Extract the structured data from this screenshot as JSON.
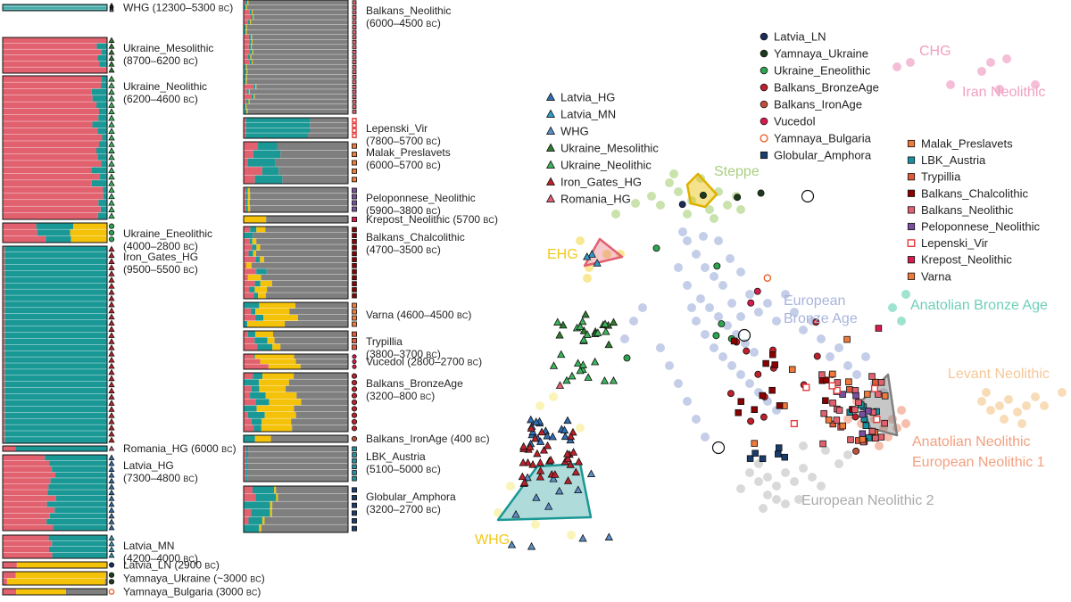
{
  "chart_data": [
    {
      "type": "bar",
      "subtype": "stacked-admixture",
      "title": "",
      "components": [
        {
          "key": "c1",
          "color": "#e2616f"
        },
        {
          "key": "c2",
          "color": "#1a9896"
        },
        {
          "key": "c3",
          "color": "#f5c20a"
        },
        {
          "key": "c4",
          "color": "#7f7f7f"
        }
      ],
      "groups": [
        {
          "col": 0,
          "name": "WHG",
          "dates": "12300–5300",
          "n": 5,
          "symbol": "triangle",
          "color": "#5a8fc8",
          "profile": [
            0,
            1,
            0,
            0
          ]
        },
        {
          "col": 0,
          "name": "Ukraine_Mesolithic",
          "dates": "8700–6200",
          "n": 6,
          "symbol": "triangle",
          "color": "#2f7d2f",
          "profile": [
            0.97,
            0.03,
            0,
            0
          ]
        },
        {
          "col": 0,
          "name": "Ukraine_Neolithic",
          "dates": "6200–4600",
          "n": 22,
          "symbol": "triangle",
          "color": "#3cb55a",
          "profile": [
            0.9,
            0.1,
            0,
            0
          ]
        },
        {
          "col": 0,
          "name": "Ukraine_Eneolithic",
          "dates": "4000–2800",
          "n": 3,
          "symbol": "circle",
          "color": "#2ea44f",
          "profile": [
            0.35,
            0.3,
            0.35,
            0
          ]
        },
        {
          "col": 0,
          "name": "Iron_Gates_HG",
          "dates": "9500–5500",
          "n": 32,
          "symbol": "triangle",
          "color": "#c0202a",
          "profile": [
            0.02,
            0.98,
            0,
            0
          ]
        },
        {
          "col": 0,
          "name": "Romania_HG",
          "dates": "6000",
          "n": 1,
          "symbol": "triangle",
          "color": "#e2616f",
          "profile": [
            0.15,
            0.85,
            0,
            0
          ]
        },
        {
          "col": 0,
          "name": "Latvia_HG",
          "dates": "7300–4800",
          "n": 13,
          "symbol": "triangle",
          "color": "#2f6eb5",
          "profile": [
            0.45,
            0.55,
            0,
            0
          ]
        },
        {
          "col": 0,
          "name": "Latvia_MN",
          "dates": "4200–4000",
          "n": 4,
          "symbol": "triangle",
          "color": "#2f9bc8",
          "profile": [
            0.45,
            0.55,
            0,
            0
          ]
        },
        {
          "col": 0,
          "name": "Latvia_LN",
          "dates": "2900",
          "n": 1,
          "symbol": "circle",
          "color": "#1b2d5a",
          "profile": [
            0.1,
            0,
            0.9,
            0
          ]
        },
        {
          "col": 0,
          "name": "Yamnaya_Ukraine",
          "dates": "~3000",
          "n": 2,
          "symbol": "circle",
          "color": "#1c3b1c",
          "profile": [
            0.05,
            0,
            0.9,
            0.05
          ]
        },
        {
          "col": 0,
          "name": "Yamnaya_Bulgaria",
          "dates": "3000",
          "n": 1,
          "symbol": "circle-open",
          "color": "#e8632a",
          "profile": [
            0.08,
            0,
            0.55,
            0.37
          ]
        },
        {
          "col": 1,
          "name": "Balkans_Neolithic",
          "dates": "6000–4500",
          "n": 23,
          "symbol": "square",
          "color": "#e2616f",
          "profile": [
            0.03,
            0.02,
            0.01,
            0.94
          ]
        },
        {
          "col": 1,
          "name": "Lepenski_Vir",
          "dates": "7800–5700",
          "n": 4,
          "symbol": "square-open",
          "color": "#e63b3b",
          "profile": [
            0.02,
            0.6,
            0,
            0.38
          ]
        },
        {
          "col": 1,
          "name": "Malak_Preslavets",
          "dates": "6000–5700",
          "n": 5,
          "symbol": "square",
          "color": "#f07a3a",
          "profile": [
            0.1,
            0.2,
            0,
            0.7
          ]
        },
        {
          "col": 1,
          "name": "Peloponnese_Neolithic",
          "dates": "5900–3800",
          "n": 4,
          "symbol": "square",
          "color": "#7b4fa0",
          "profile": [
            0.02,
            0.02,
            0.02,
            0.94
          ]
        },
        {
          "col": 1,
          "name": "Krepost_Neolithic",
          "dates": "5700",
          "n": 1,
          "symbol": "square",
          "color": "#d81b4d",
          "profile": [
            0,
            0,
            0.22,
            0.78
          ]
        },
        {
          "col": 1,
          "name": "Balkans_Chalcolithic",
          "dates": "4700–3500",
          "n": 12,
          "symbol": "square",
          "color": "#8b0000",
          "profile": [
            0.06,
            0.03,
            0.06,
            0.85
          ]
        },
        {
          "col": 1,
          "name": "Varna",
          "dates": "4600–4500",
          "n": 4,
          "symbol": "square",
          "color": "#f07a3a",
          "profile": [
            0.05,
            0.08,
            0.3,
            0.57
          ]
        },
        {
          "col": 1,
          "name": "Trypillia",
          "dates": "3800–3700",
          "n": 3,
          "symbol": "square",
          "color": "#e05a3a",
          "profile": [
            0.08,
            0.1,
            0.12,
            0.7
          ]
        },
        {
          "col": 1,
          "name": "Vucedol",
          "dates": "2800–2700",
          "n": 3,
          "symbol": "circle",
          "color": "#d81b4d",
          "profile": [
            0.15,
            0.05,
            0.35,
            0.45
          ]
        },
        {
          "col": 1,
          "name": "Balkans_BronzeAge",
          "dates": "3200–800",
          "n": 9,
          "symbol": "circle",
          "color": "#c0202a",
          "profile": [
            0.05,
            0.1,
            0.3,
            0.55
          ]
        },
        {
          "col": 1,
          "name": "Balkans_IronAge",
          "dates": "400",
          "n": 1,
          "symbol": "circle",
          "color": "#c0503a",
          "profile": [
            0.05,
            0.05,
            0.15,
            0.75
          ]
        },
        {
          "col": 1,
          "name": "LBK_Austria",
          "dates": "5100–5000",
          "n": 6,
          "symbol": "square",
          "color": "#1a8fa0",
          "profile": [
            0.02,
            0.02,
            0,
            0.96
          ]
        },
        {
          "col": 1,
          "name": "Globular_Amphora",
          "dates": "3200–2700",
          "n": 6,
          "symbol": "square",
          "color": "#1b3d6e",
          "profile": [
            0.05,
            0.2,
            0.02,
            0.73
          ]
        }
      ]
    },
    {
      "type": "scatter",
      "subtype": "PCA",
      "title": "",
      "xlabel": "",
      "ylabel": "",
      "legend_left": [
        "Latvia_HG",
        "Latvia_MN",
        "WHG",
        "Ukraine_Mesolithic",
        "Ukraine_Neolithic",
        "Iron_Gates_HG",
        "Romania_HG"
      ],
      "legend_top": [
        "Latvia_LN",
        "Yamnaya_Ukraine",
        "Ukraine_Eneolithic",
        "Balkans_BronzeAge",
        "Balkans_IronAge",
        "Vucedol",
        "Yamnaya_Bulgaria",
        "Globular_Amphora"
      ],
      "legend_right": [
        "Malak_Preslavets",
        "LBK_Austria",
        "Trypillia",
        "Balkans_Chalcolithic",
        "Balkans_Neolithic",
        "Peloponnese_Neolithic",
        "Lepenski_Vir",
        "Krepost_Neolithic",
        "Varna"
      ],
      "clusters": [
        {
          "name": "CHG",
          "color": "#f0a8c8",
          "points": [
            [
              1005,
              75
            ],
            [
              1020,
              70
            ],
            [
              1110,
              70
            ],
            [
              1128,
              66
            ],
            [
              1100,
              80
            ]
          ]
        },
        {
          "name": "Iran Neolithic",
          "color": "#f0a8c8",
          "points": [
            [
              1065,
              95
            ],
            [
              1120,
              100
            ],
            [
              1160,
              95
            ]
          ]
        },
        {
          "name": "Steppe",
          "color": "#b8d890",
          "points": [
            [
              750,
              205
            ],
            [
              760,
              215
            ],
            [
              775,
              225
            ],
            [
              785,
              200
            ],
            [
              795,
              235
            ],
            [
              805,
              215
            ],
            [
              815,
              230
            ],
            [
              825,
              220
            ],
            [
              730,
              220
            ],
            [
              740,
              230
            ],
            [
              770,
              240
            ],
            [
              800,
              245
            ],
            [
              690,
              240
            ],
            [
              712,
              228
            ],
            [
              830,
              235
            ],
            [
              755,
              195
            ]
          ]
        },
        {
          "name": "EHG",
          "color": "#f5e070",
          "points": [
            [
              650,
              270
            ],
            [
              660,
              300
            ],
            [
              680,
              285
            ],
            [
              695,
              285
            ],
            [
              658,
              312
            ]
          ]
        },
        {
          "name": "European Bronze Age",
          "color": "#b0bde0",
          "points": [
            [
              770,
              270
            ],
            [
              780,
              285
            ],
            [
              790,
              300
            ],
            [
              800,
              310
            ],
            [
              810,
              320
            ],
            [
              770,
              320
            ],
            [
              785,
              335
            ],
            [
              795,
              345
            ],
            [
              805,
              355
            ],
            [
              815,
              365
            ],
            [
              825,
              375
            ],
            [
              835,
              385
            ],
            [
              845,
              395
            ],
            [
              780,
              360
            ],
            [
              790,
              375
            ],
            [
              760,
              300
            ],
            [
              775,
              345
            ],
            [
              820,
              340
            ],
            [
              830,
              355
            ],
            [
              840,
              330
            ],
            [
              850,
              350
            ],
            [
              860,
              340
            ],
            [
              870,
              360
            ],
            [
              880,
              330
            ],
            [
              890,
              350
            ],
            [
              900,
              370
            ],
            [
              910,
              360
            ],
            [
              920,
              380
            ],
            [
              930,
              400
            ],
            [
              940,
              390
            ],
            [
              950,
              410
            ],
            [
              960,
              420
            ],
            [
              970,
              400
            ],
            [
              980,
              430
            ],
            [
              990,
              440
            ],
            [
              800,
              390
            ],
            [
              810,
              400
            ],
            [
              820,
              410
            ],
            [
              830,
              420
            ],
            [
              840,
              430
            ],
            [
              850,
              440
            ],
            [
              860,
              450
            ],
            [
              870,
              460
            ],
            [
              740,
              390
            ],
            [
              750,
              410
            ],
            [
              760,
              430
            ],
            [
              770,
              450
            ],
            [
              780,
              470
            ],
            [
              790,
              490
            ],
            [
              700,
              380
            ],
            [
              710,
              360
            ],
            [
              720,
              345
            ],
            [
              765,
              260
            ],
            [
              788,
              265
            ],
            [
              805,
              270
            ],
            [
              818,
              290
            ],
            [
              830,
              305
            ]
          ]
        },
        {
          "name": "Anatolian Bronze Age",
          "color": "#7ed8c0",
          "points": [
            [
              1000,
              345
            ],
            [
              1015,
              330
            ],
            [
              1010,
              360
            ]
          ]
        },
        {
          "name": "Levant Neolithic",
          "color": "#f5d0a0",
          "points": [
            [
              1100,
              450
            ],
            [
              1110,
              460
            ],
            [
              1120,
              455
            ],
            [
              1130,
              448
            ],
            [
              1140,
              462
            ],
            [
              1150,
              455
            ],
            [
              1160,
              445
            ],
            [
              1170,
              455
            ],
            [
              1125,
              470
            ],
            [
              1145,
              475
            ],
            [
              1190,
              440
            ],
            [
              1105,
              440
            ]
          ]
        },
        {
          "name": "Anatolian Neolithic European Neolithic 1",
          "color": "#f3a890",
          "points": [
            [
              960,
              450
            ],
            [
              970,
              460
            ],
            [
              980,
              470
            ],
            [
              990,
              480
            ],
            [
              1000,
              470
            ],
            [
              1010,
              460
            ],
            [
              975,
              490
            ],
            [
              985,
              500
            ],
            [
              995,
              490
            ],
            [
              1005,
              480
            ],
            [
              950,
              470
            ],
            [
              965,
              475
            ],
            [
              1015,
              475
            ]
          ]
        },
        {
          "name": "European Neolithic 2",
          "color": "#cccccc",
          "points": [
            [
              840,
              530
            ],
            [
              850,
              540
            ],
            [
              860,
              535
            ],
            [
              870,
              545
            ],
            [
              880,
              530
            ],
            [
              890,
              540
            ],
            [
              900,
              525
            ],
            [
              910,
              535
            ],
            [
              920,
              545
            ],
            [
              860,
              555
            ],
            [
              870,
              560
            ],
            [
              855,
              570
            ],
            [
              880,
              565
            ],
            [
              895,
              560
            ],
            [
              850,
              520
            ],
            [
              830,
              548
            ],
            [
              940,
              520
            ],
            [
              950,
              510
            ],
            [
              925,
              505
            ],
            [
              900,
              500
            ]
          ]
        },
        {
          "name": "WHG",
          "color": "#f8f0a0",
          "points": [
            [
              558,
              575
            ],
            [
              600,
              588
            ],
            [
              640,
              600
            ],
            [
              605,
              455
            ],
            [
              620,
              445
            ],
            [
              650,
              480
            ],
            [
              572,
              545
            ]
          ]
        }
      ]
    }
  ]
}
